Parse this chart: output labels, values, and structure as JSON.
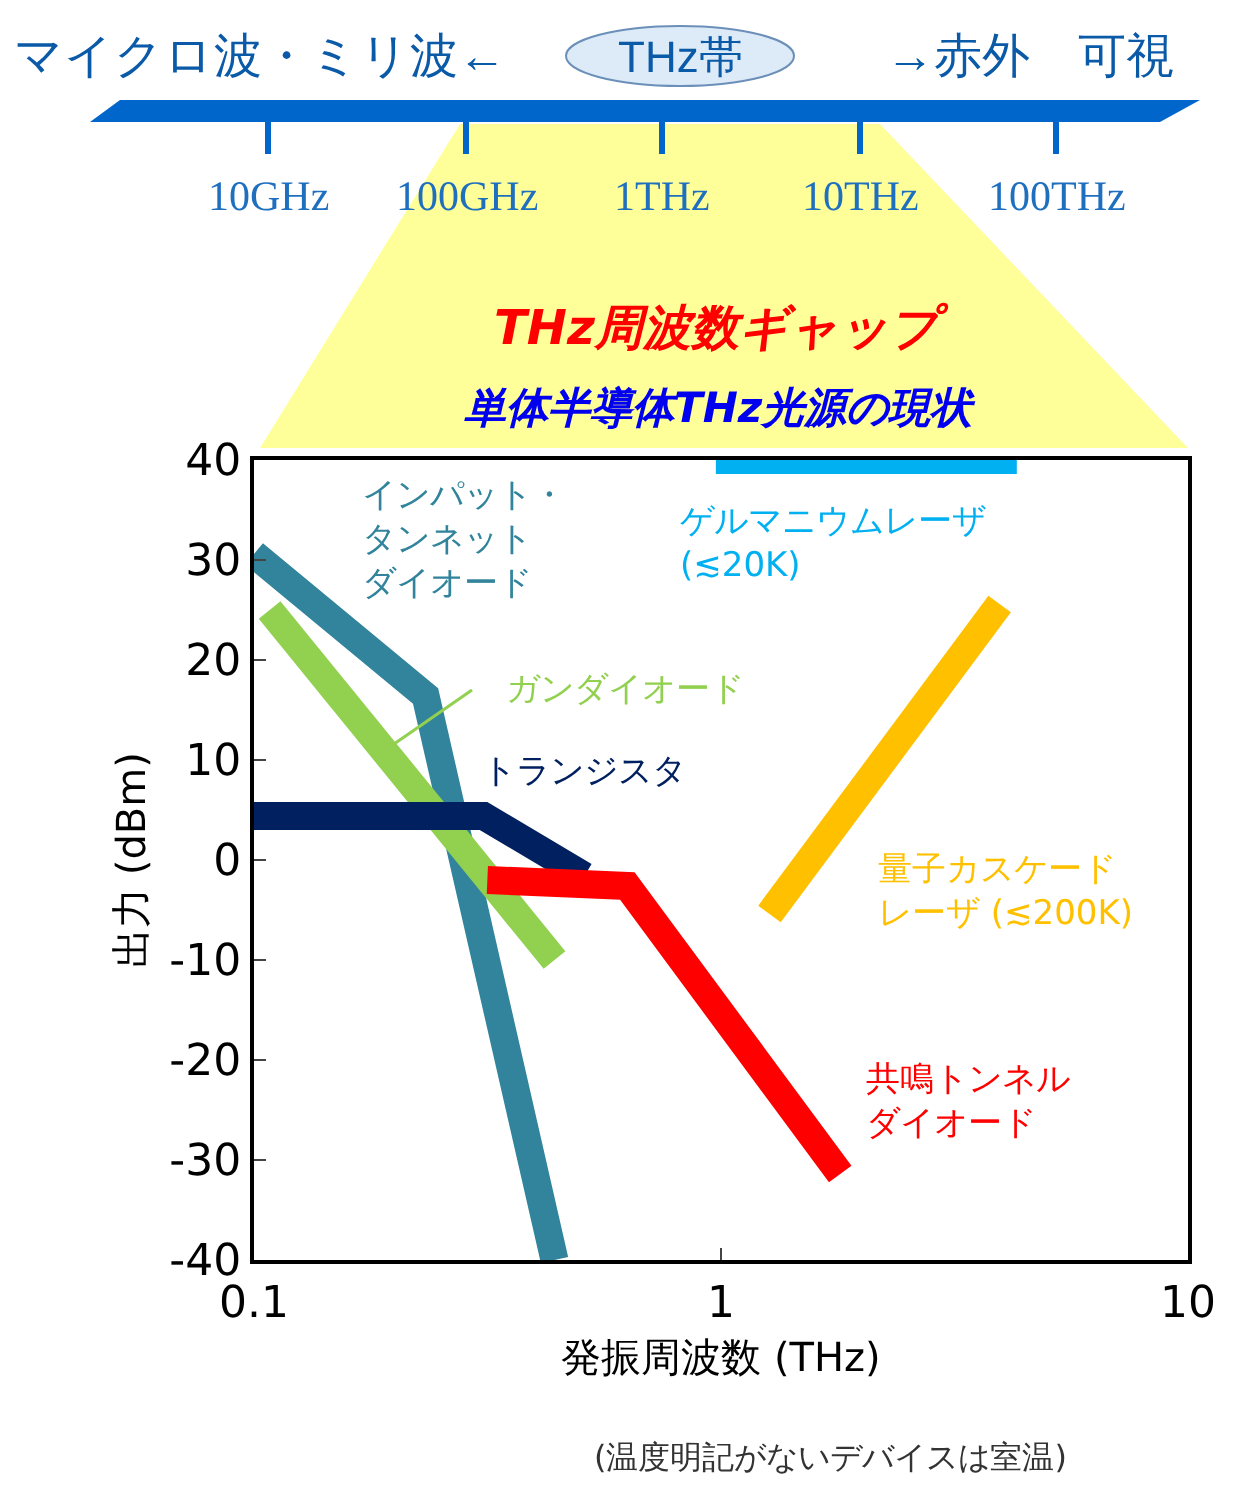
{
  "chart_data": {
    "type": "line",
    "title": "THz周波数ギャップ",
    "subtitle": "単体半導体THz光源の現状",
    "xlabel": "発振周波数 (THz)",
    "ylabel": "出力 (dBm)",
    "log": "x",
    "xlim": [
      0.1,
      10
    ],
    "xticks": [
      0.1,
      1,
      10
    ],
    "ylim": [
      -40,
      40
    ],
    "yticks": [
      -40,
      -30,
      -20,
      -10,
      0,
      10,
      20,
      30,
      40
    ],
    "legend": false,
    "marker": "none",
    "line_style": "solid",
    "series": [
      {
        "name": "インパット・タンネットダイオード",
        "color": "#31849b",
        "x": [
          0.1,
          0.233,
          0.44
        ],
        "values": [
          30.6,
          16.4,
          -40
        ]
      },
      {
        "name": "ガンダイオード",
        "color": "#92d050",
        "x": [
          0.108,
          0.44
        ],
        "values": [
          25,
          -10
        ]
      },
      {
        "name": "トランジスタ",
        "color": "#002060",
        "x": [
          0.1,
          0.31,
          0.51
        ],
        "values": [
          4.4,
          4.4,
          -1.6
        ]
      },
      {
        "name": "共鳴トンネルダイオード",
        "color": "#ff0000",
        "x": [
          0.316,
          0.63,
          1.8
        ],
        "values": [
          -2,
          -2.6,
          -31.4
        ]
      },
      {
        "name": "量子カスケードレーザ (≲200K)",
        "color": "#ffc000",
        "x": [
          1.27,
          3.95
        ],
        "values": [
          -5.4,
          25.6
        ]
      },
      {
        "name": "ゲルマニウムレーザ(≲20K)",
        "color": "#00b0f0",
        "x": [
          0.975,
          4.3
        ],
        "values": [
          40,
          40
        ]
      }
    ],
    "annotations": [
      "マイクロ波・ミリ波←",
      "THz帯",
      "→赤外　可視",
      "10GHz",
      "100GHz",
      "1THz",
      "10THz",
      "100THz",
      "(温度明記がないデバイスは室温)"
    ]
  }
}
